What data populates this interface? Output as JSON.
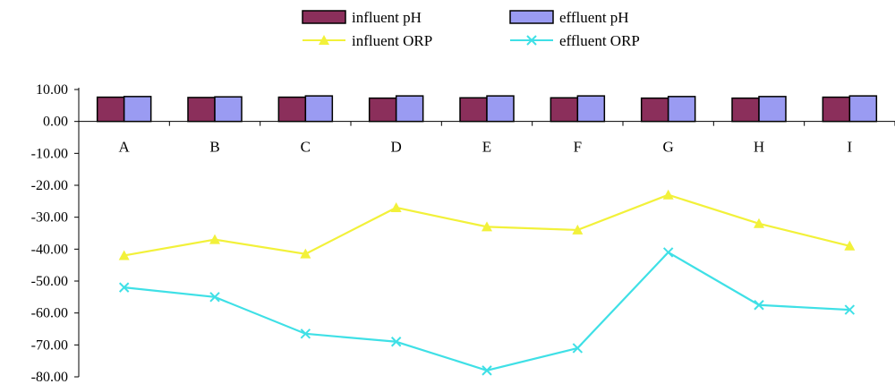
{
  "colors": {
    "influent_pH": "#8b2f5b",
    "effluent_pH": "#9a9bf2",
    "influent_ORP": "#f2f13a",
    "effluent_ORP": "#3fe0e6",
    "axis": "#000000",
    "background": "#ffffff"
  },
  "chart_data": {
    "type": "bar+line",
    "categories": [
      "A",
      "B",
      "C",
      "D",
      "E",
      "F",
      "G",
      "H",
      "I"
    ],
    "series": [
      {
        "name": "influent pH",
        "kind": "bar",
        "values": [
          7.6,
          7.5,
          7.6,
          7.3,
          7.4,
          7.4,
          7.3,
          7.3,
          7.6
        ]
      },
      {
        "name": "effluent pH",
        "kind": "bar",
        "values": [
          7.8,
          7.7,
          8.0,
          8.0,
          8.0,
          8.0,
          7.8,
          7.8,
          8.0
        ]
      },
      {
        "name": "influent ORP",
        "kind": "line",
        "marker": "triangle",
        "values": [
          -42,
          -37,
          -41.5,
          -27,
          -33,
          -34,
          -23,
          -32,
          -39
        ]
      },
      {
        "name": "effluent ORP",
        "kind": "line",
        "marker": "x",
        "values": [
          -52,
          -55,
          -66.5,
          -69,
          -78,
          -71,
          -41,
          -57.5,
          -59
        ]
      }
    ],
    "ylim": [
      -80,
      10
    ],
    "yticks": [
      10,
      0,
      -10,
      -20,
      -30,
      -40,
      -50,
      -60,
      -70,
      -80
    ],
    "ytick_labels": [
      "10.00",
      "0.00",
      "-10.00",
      "-20.00",
      "-30.00",
      "-40.00",
      "-50.00",
      "-60.00",
      "-70.00",
      "-80.00"
    ],
    "legend_position": "top",
    "grid": false,
    "title": "",
    "xlabel": "",
    "ylabel": ""
  }
}
